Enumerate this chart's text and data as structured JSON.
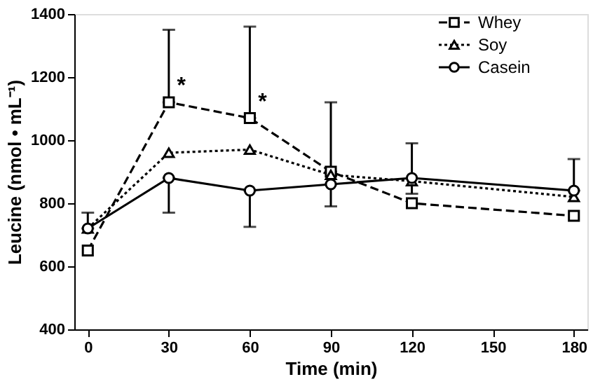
{
  "chart_data": {
    "type": "line",
    "xlabel": "Time (min)",
    "ylabel": "Leucine (nmol • mL⁻¹)",
    "x": [
      0,
      30,
      60,
      90,
      120,
      180
    ],
    "series": [
      {
        "name": "Whey",
        "color": "#000000",
        "marker": "square",
        "line_style": "dashed",
        "values": [
          650,
          1120,
          1070,
          900,
          800,
          760
        ],
        "errors": [
          null,
          [
            1120,
            1350
          ],
          [
            1070,
            1360
          ],
          [
            900,
            1120
          ],
          null,
          null
        ]
      },
      {
        "name": "Soy",
        "color": "#000000",
        "marker": "triangle",
        "line_style": "dotted",
        "values": [
          720,
          960,
          970,
          890,
          870,
          820
        ],
        "errors": [
          null,
          null,
          null,
          null,
          null,
          null
        ]
      },
      {
        "name": "Casein",
        "color": "#000000",
        "marker": "circle",
        "line_style": "solid",
        "values": [
          720,
          880,
          840,
          860,
          880,
          840
        ],
        "errors": [
          [
            720,
            770
          ],
          [
            770,
            880
          ],
          [
            725,
            840
          ],
          [
            790,
            860
          ],
          [
            830,
            990
          ],
          [
            840,
            940
          ]
        ]
      }
    ],
    "annotations": [
      {
        "text": "*",
        "x": 30,
        "y": 1120
      },
      {
        "text": "*",
        "x": 60,
        "y": 1070
      }
    ],
    "xlim": [
      -5,
      185
    ],
    "xticks": [
      0,
      30,
      60,
      90,
      120,
      150,
      180
    ],
    "ylim": [
      400,
      1400
    ],
    "yticks": [
      400,
      600,
      800,
      1000,
      1200,
      1400
    ],
    "grid": false,
    "legend": "top right"
  }
}
